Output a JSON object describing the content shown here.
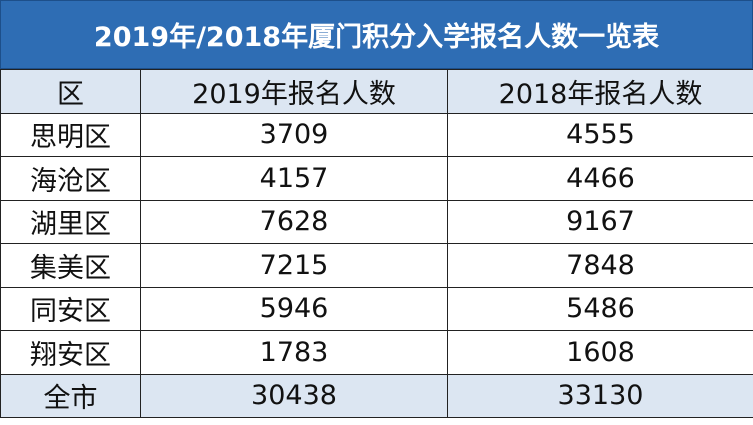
{
  "header": {
    "title": "2019年/2018年厦门积分入学报名人数一览表"
  },
  "table": {
    "columns": [
      "区",
      "2019年报名人数",
      "2018年报名人数"
    ],
    "rows": [
      [
        "思明区",
        3709,
        4555
      ],
      [
        "海沧区",
        4157,
        4466
      ],
      [
        "湖里区",
        7628,
        9167
      ],
      [
        "集美区",
        7215,
        7848
      ],
      [
        "同安区",
        5946,
        5486
      ],
      [
        "翔安区",
        1783,
        1608
      ]
    ],
    "total": [
      "全市",
      30438,
      33130
    ]
  }
}
